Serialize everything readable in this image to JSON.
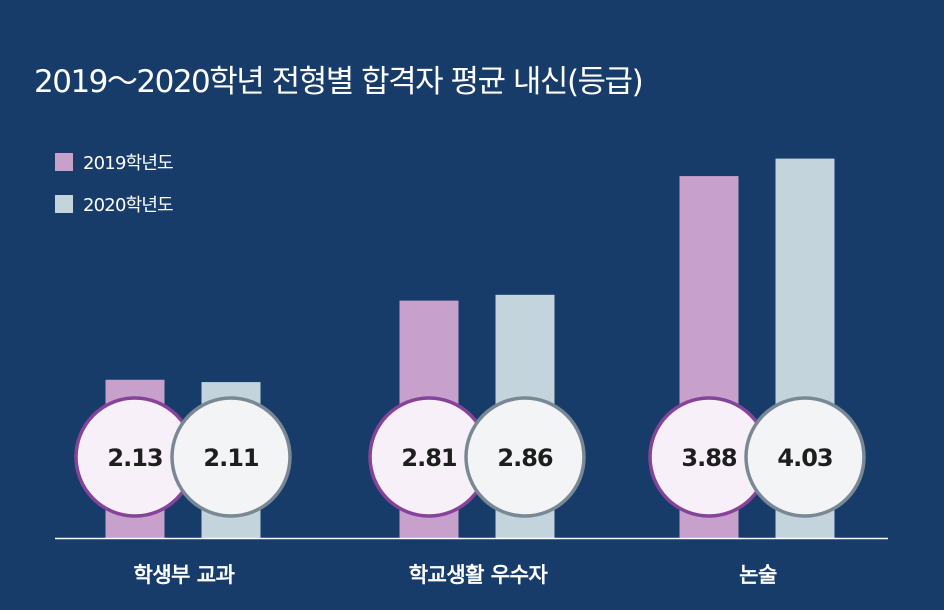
{
  "chart_data": {
    "type": "bar",
    "title": "2019～2020학년 전형별 합격자 평균 내신(등급)",
    "categories": [
      "학생부 교과",
      "학교생활 우수자",
      "논술"
    ],
    "series": [
      {
        "name": "2019학년도",
        "values": [
          2.13,
          2.81,
          3.88
        ],
        "color": "#c7a0cb",
        "circle_fill": "#f7f0f8",
        "circle_stroke": "#86439a"
      },
      {
        "name": "2020학년도",
        "values": [
          2.11,
          2.86,
          4.03
        ],
        "color": "#c4d4dd",
        "circle_fill": "#f2f4f6",
        "circle_stroke": "#7a8896"
      }
    ],
    "xlabel": "",
    "ylabel": "",
    "grid": false,
    "legend": "top-left"
  },
  "colors": {
    "background": "#173c69",
    "axis": "#ffffff"
  }
}
